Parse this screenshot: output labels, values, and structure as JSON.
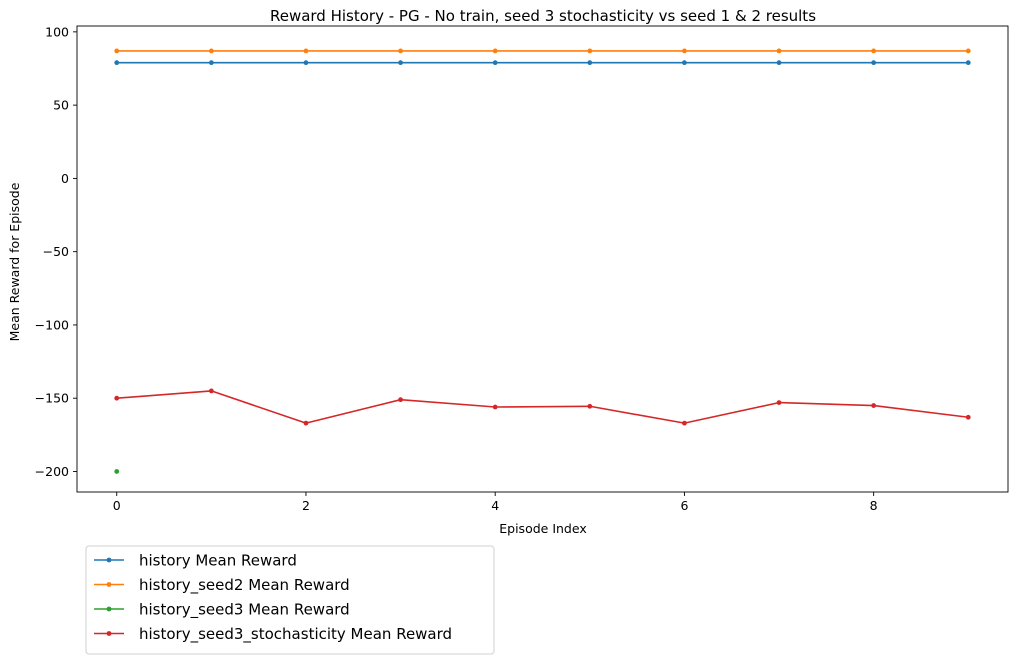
{
  "chart_data": {
    "type": "line",
    "title": "Reward History - PG - No train, seed 3 stochasticity vs seed 1 & 2 results",
    "xlabel": "Episode Index",
    "ylabel": "Mean Reward for Episode",
    "xlim": [
      -0.42,
      9.42
    ],
    "ylim": [
      -214,
      104
    ],
    "x_ticks": [
      0,
      2,
      4,
      6,
      8
    ],
    "x_tick_labels": [
      "0",
      "2",
      "4",
      "6",
      "8"
    ],
    "y_ticks": [
      100,
      50,
      0,
      -50,
      -100,
      -150,
      -200
    ],
    "y_tick_labels": [
      "100",
      "50",
      "0",
      "−50",
      "−100",
      "−150",
      "−200"
    ],
    "grid": false,
    "legend_position": "below-left",
    "series": [
      {
        "name": "history Mean Reward",
        "color": "#1f77b4",
        "x": [
          0,
          1,
          2,
          3,
          4,
          5,
          6,
          7,
          8,
          9
        ],
        "values": [
          79,
          79,
          79,
          79,
          79,
          79,
          79,
          79,
          79,
          79
        ]
      },
      {
        "name": "history_seed2 Mean Reward",
        "color": "#ff7f0e",
        "x": [
          0,
          1,
          2,
          3,
          4,
          5,
          6,
          7,
          8,
          9
        ],
        "values": [
          87,
          87,
          87,
          87,
          87,
          87,
          87,
          87,
          87,
          87
        ]
      },
      {
        "name": "history_seed3 Mean Reward",
        "color": "#2ca02c",
        "x": [
          0
        ],
        "values": [
          -200
        ]
      },
      {
        "name": "history_seed3_stochasticity Mean Reward",
        "color": "#d62728",
        "x": [
          0,
          1,
          2,
          3,
          4,
          5,
          6,
          7,
          8,
          9
        ],
        "values": [
          -150,
          -145,
          -167,
          -151,
          -156,
          -155.5,
          -167,
          -153,
          -155,
          -163
        ]
      }
    ]
  }
}
